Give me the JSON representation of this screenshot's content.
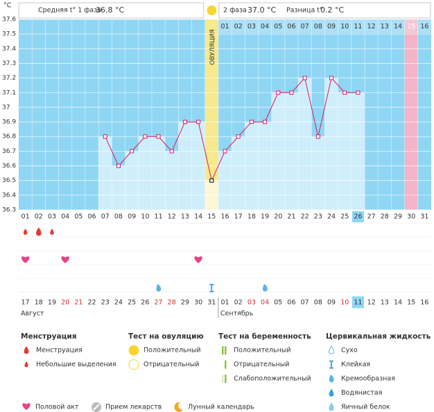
{
  "chart_data": {
    "type": "line",
    "y_unit": "°C",
    "header": {
      "phase1_label": "Средняя t° 1 фаза",
      "phase1_value": "36.8 °C",
      "phase2_label": "2 фаза",
      "phase2_value": "37.0 °C",
      "diff_label": "Разница t°",
      "diff_value": "0.2 °C"
    },
    "ylim": [
      36.3,
      37.6
    ],
    "yticks": [
      36.3,
      36.4,
      36.5,
      36.6,
      36.7,
      36.8,
      36.9,
      {
        "value": 37,
        "label": "37"
      },
      37.1,
      37.2,
      37.3,
      37.4,
      37.5,
      37.6
    ],
    "categories": [
      "01",
      "02",
      "03",
      "04",
      "05",
      "06",
      "07",
      "08",
      "09",
      "10",
      "11",
      "12",
      "13",
      "14",
      "15",
      "16",
      "17",
      "18",
      "19",
      "20",
      "21",
      "22",
      "23",
      "24",
      "25",
      "26",
      "27",
      "28",
      "29",
      "30",
      "31"
    ],
    "series": [
      {
        "color": "#d81b60",
        "values": [
          null,
          null,
          null,
          null,
          null,
          null,
          36.8,
          36.6,
          36.7,
          36.8,
          36.8,
          36.7,
          36.9,
          36.9,
          36.5,
          36.7,
          36.8,
          36.9,
          36.9,
          37.1,
          37.1,
          37.2,
          36.8,
          37.2,
          37.1,
          37.1,
          null,
          null,
          null,
          null,
          null
        ]
      }
    ],
    "ovulation_label": "ОВУЛЯЦИЯ",
    "ovulation_index": 14,
    "pink_index": 29,
    "today_index": 25,
    "phase2_start": 15,
    "phase2_days": [
      "01",
      "02",
      "03",
      "04",
      "05",
      "06",
      "07",
      "08",
      "09",
      "10",
      "11",
      "12",
      "13",
      "14",
      "15",
      "16"
    ],
    "dates": [
      "17",
      "18",
      "19",
      "20",
      "21",
      "22",
      "23",
      "24",
      "25",
      "26",
      "27",
      "28",
      "29",
      "30",
      "31",
      "01",
      "02",
      "03",
      "04",
      "05",
      "06",
      "07",
      "08",
      "09",
      "10",
      "11",
      "12",
      "13",
      "14",
      "15",
      "16"
    ],
    "red_dates": [
      3,
      4,
      10,
      11,
      17,
      18,
      24
    ],
    "months": [
      "Август",
      "Сентябрь"
    ],
    "month_start": 15,
    "menstruation_days": [
      0,
      1,
      2
    ],
    "intercourse_days": [
      0,
      3,
      13
    ],
    "creamy_days": [
      10,
      18
    ],
    "sticky_days": [
      14
    ],
    "legend": [
      {
        "title": "Менструация",
        "items": [
          "Менструация",
          "Небольшие выделения"
        ]
      },
      {
        "title": "Тест на овуляцию",
        "items": [
          "Положительный",
          "Отрицательный"
        ]
      },
      {
        "title": "Тест на беременность",
        "items": [
          "Положительный",
          "Отрицательный",
          "Слабоположительный"
        ]
      },
      {
        "title": "Цервикальная жидкость",
        "items": [
          "Сухо",
          "Клейкая",
          "Кремообразная",
          "Водянистая",
          "Яичный белок"
        ]
      }
    ],
    "bottom_legend": [
      "Половой акт",
      "Прием лекарств",
      "Лунный календарь"
    ]
  }
}
